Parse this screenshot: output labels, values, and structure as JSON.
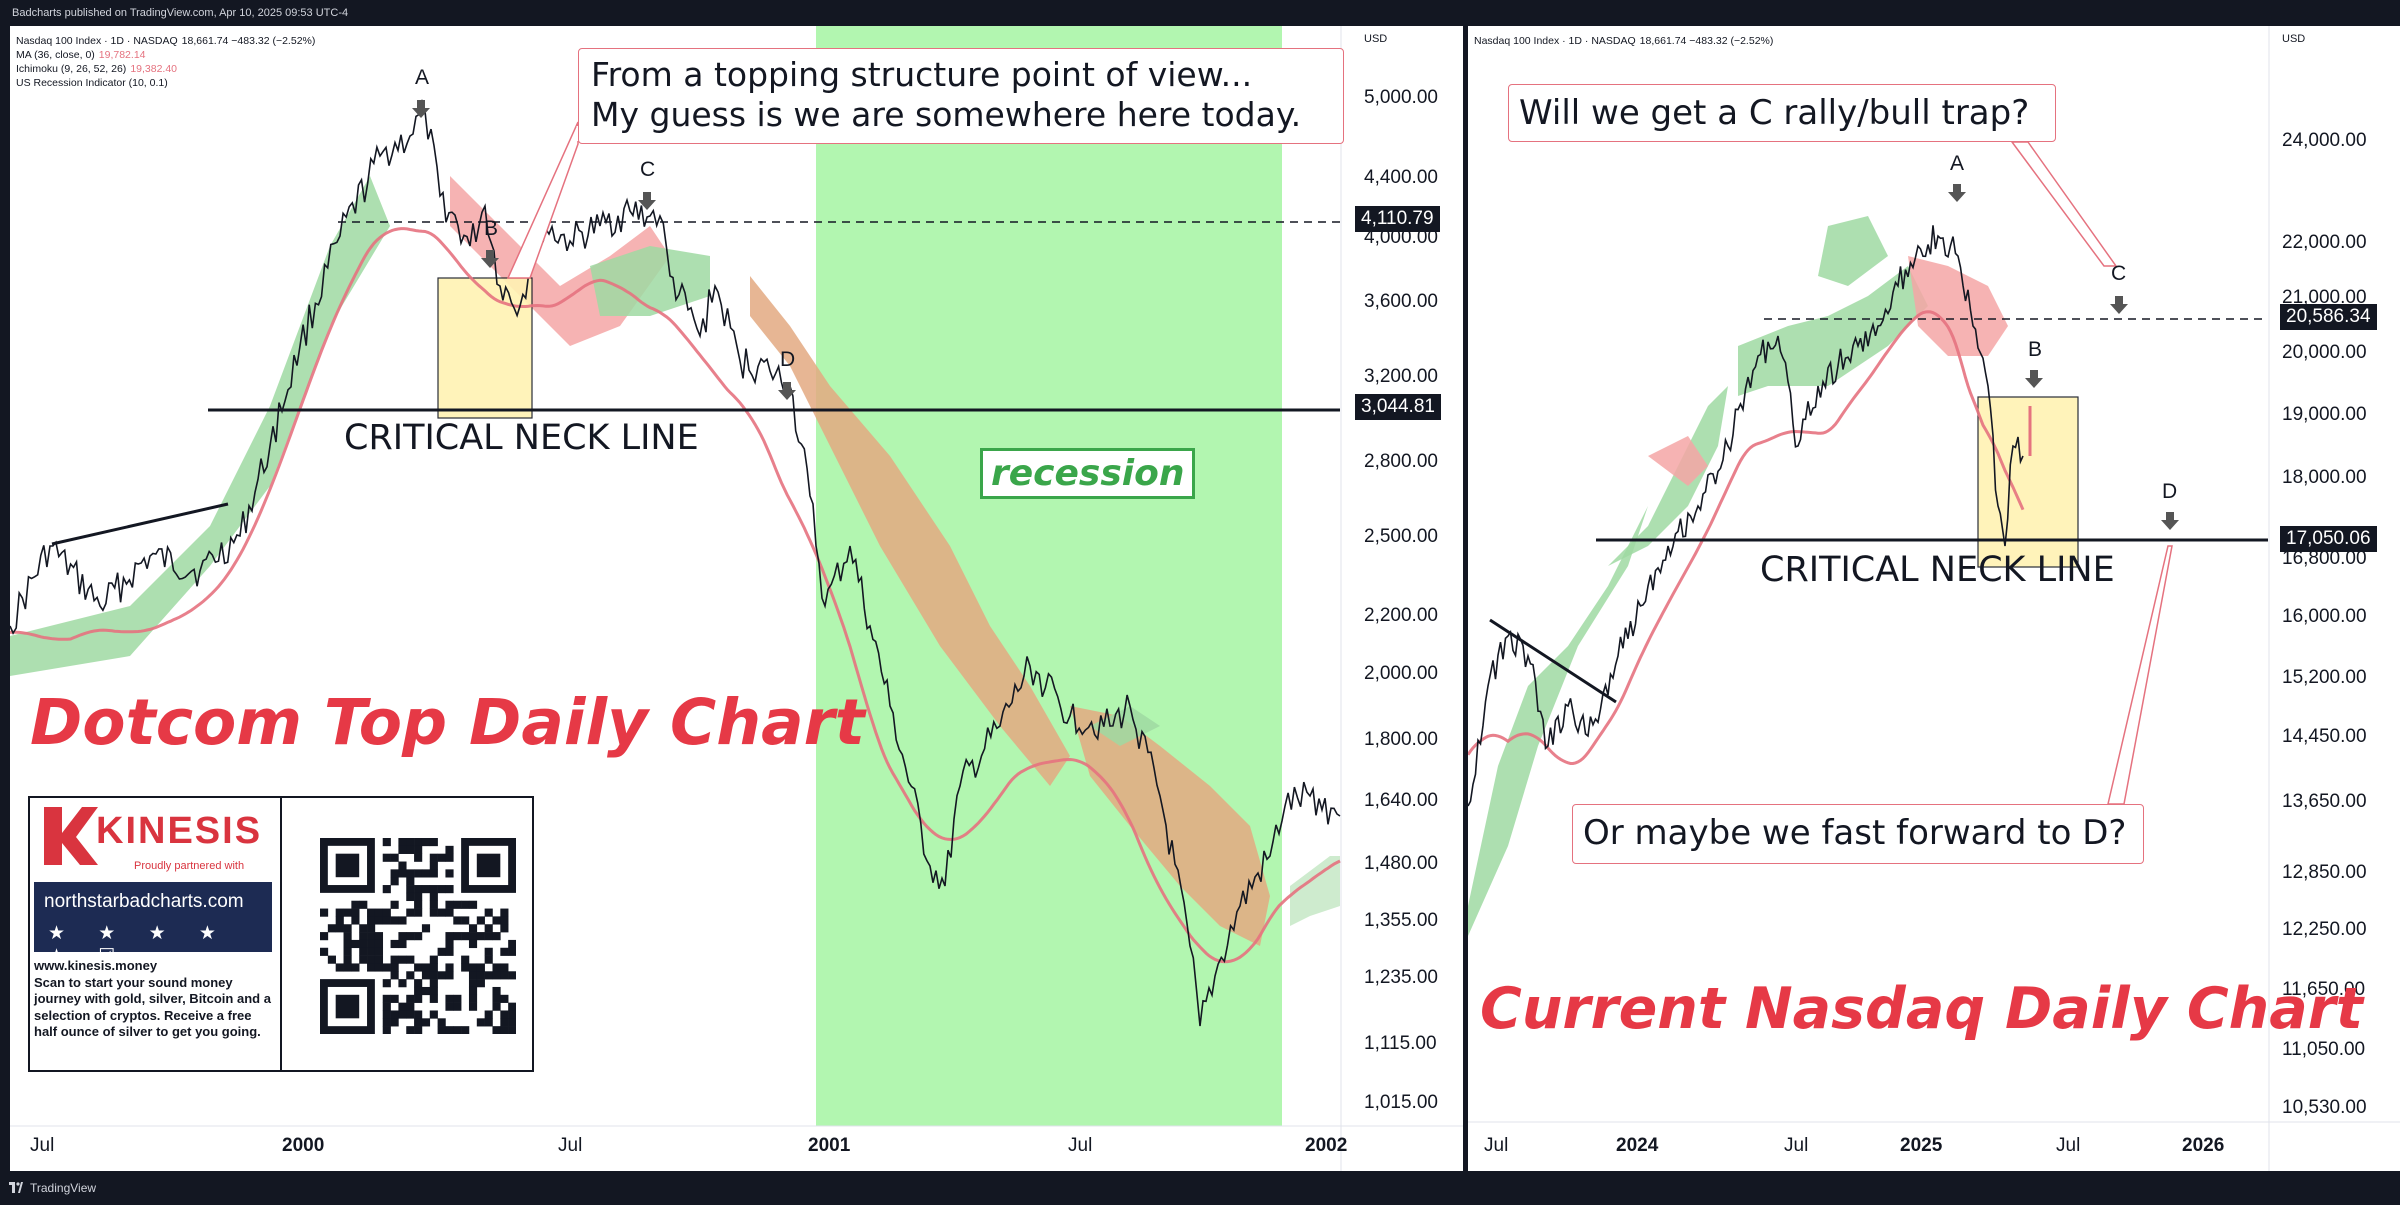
{
  "header": {
    "publisher_line": "Badcharts published on TradingView.com, Apr 10, 2025 09:53 UTC-4"
  },
  "footer": {
    "brand": "TradingView"
  },
  "left_panel": {
    "legend": [
      {
        "label": "Nasdaq 100 Index · 1D · NASDAQ",
        "value": "18,661.74 −483.32 (−2.52%)",
        "color": "#131722"
      },
      {
        "label": "MA (36, close, 0)",
        "value": "19,782.14",
        "color": "#e5727f"
      },
      {
        "label": "Ichimoku (9, 26, 52, 26)",
        "value": "19,382.40",
        "color": "#e5727f"
      },
      {
        "label": "US Recession Indicator (10, 0.1)",
        "value": "",
        "color": "#131722"
      }
    ],
    "currency": "USD",
    "title": "Dotcom Top Daily Chart",
    "neck_label": "CRITICAL NECK LINE",
    "recession_label": "recession",
    "callout": [
      "From a topping structure point of view...",
      "My guess is we are somewhere here today."
    ],
    "points": [
      "A",
      "B",
      "C",
      "D"
    ],
    "price_tags": [
      "4,110.79",
      "3,044.81"
    ],
    "y_ticks": [
      "5,000.00",
      "4,400.00",
      "4,000.00",
      "3,600.00",
      "3,200.00",
      "2,800.00",
      "2,500.00",
      "2,200.00",
      "2,000.00",
      "1,800.00",
      "1,640.00",
      "1,480.00",
      "1,355.00",
      "1,235.00",
      "1,115.00",
      "1,015.00"
    ],
    "x_ticks": [
      {
        "label": "Jul",
        "bold": false
      },
      {
        "label": "2000",
        "bold": true
      },
      {
        "label": "Jul",
        "bold": false
      },
      {
        "label": "2001",
        "bold": true
      },
      {
        "label": "Jul",
        "bold": false
      },
      {
        "label": "2002",
        "bold": true
      }
    ],
    "kinesis": {
      "name": "KINESIS",
      "partner": "Proudly partnered with",
      "site": "northstarbadcharts.com",
      "stars": "★ ★ ★ ★ ★ ☑",
      "web": "www.kinesis.money",
      "text": "Scan to start your sound money journey with gold, silver, Bitcoin and a selection of cryptos. Receive a free half ounce of silver to get you going."
    }
  },
  "right_panel": {
    "legend": [
      {
        "label": "Nasdaq 100 Index · 1D · NASDAQ",
        "value": "18,661.74 −483.32 (−2.52%)"
      }
    ],
    "currency": "USD",
    "title": "Current Nasdaq Daily Chart",
    "neck_label": "CRITICAL NECK LINE",
    "callout_top": "Will we get a C rally/bull trap?",
    "callout_bottom": "Or maybe we fast forward to D?",
    "points": [
      "A",
      "B",
      "C",
      "D"
    ],
    "price_tags": [
      "20,586.34",
      "17,050.06"
    ],
    "y_ticks": [
      "24,000.00",
      "22,000.00",
      "21,000.00",
      "20,000.00",
      "19,000.00",
      "18,000.00",
      "16,800.00",
      "16,000.00",
      "15,200.00",
      "14,450.00",
      "13,650.00",
      "12,850.00",
      "12,250.00",
      "11,650.00",
      "11,050.00",
      "10,530.00"
    ],
    "x_ticks": [
      {
        "label": "Jul",
        "bold": false
      },
      {
        "label": "2024",
        "bold": true
      },
      {
        "label": "Jul",
        "bold": false
      },
      {
        "label": "2025",
        "bold": true
      },
      {
        "label": "Jul",
        "bold": false
      },
      {
        "label": "2026",
        "bold": true
      }
    ]
  },
  "chart_data": [
    {
      "type": "line",
      "title": "Dotcom Top Daily Chart",
      "series": [
        {
          "name": "Nasdaq 100 Index",
          "x": [
            "1999-06",
            "1999-09",
            "1999-12",
            "2000-03",
            "2000-05",
            "2000-07",
            "2000-09",
            "2000-11",
            "2001-01",
            "2001-04",
            "2001-06",
            "2001-09",
            "2001-10",
            "2001-12"
          ],
          "values": [
            2100,
            2300,
            3600,
            4700,
            3500,
            4100,
            3400,
            2500,
            2300,
            1200,
            1900,
            1300,
            1100,
            1600
          ]
        },
        {
          "name": "MA (36, close, 0)",
          "x": [
            "1999-06",
            "1999-12",
            "2000-03",
            "2000-07",
            "2000-11",
            "2001-03",
            "2001-07",
            "2001-10",
            "2001-12"
          ],
          "values": [
            2000,
            3200,
            4200,
            3800,
            3100,
            1900,
            1600,
            1400,
            1550
          ]
        }
      ],
      "levels": [
        4110.79,
        3044.81
      ],
      "ylim": [
        1015,
        5000
      ],
      "recession_shading": [
        "2001-01",
        "2001-11"
      ]
    },
    {
      "type": "line",
      "title": "Current Nasdaq Daily Chart",
      "series": [
        {
          "name": "Nasdaq 100 Index",
          "x": [
            "2023-06",
            "2023-09",
            "2023-11",
            "2024-01",
            "2024-04",
            "2024-07",
            "2024-08",
            "2024-12",
            "2025-02",
            "2025-04"
          ],
          "values": [
            15200,
            14500,
            14200,
            17000,
            18300,
            20600,
            17800,
            21900,
            22000,
            17050
          ]
        }
      ],
      "levels": [
        20586.34,
        17050.06
      ],
      "ylim": [
        10530,
        24000
      ]
    }
  ]
}
